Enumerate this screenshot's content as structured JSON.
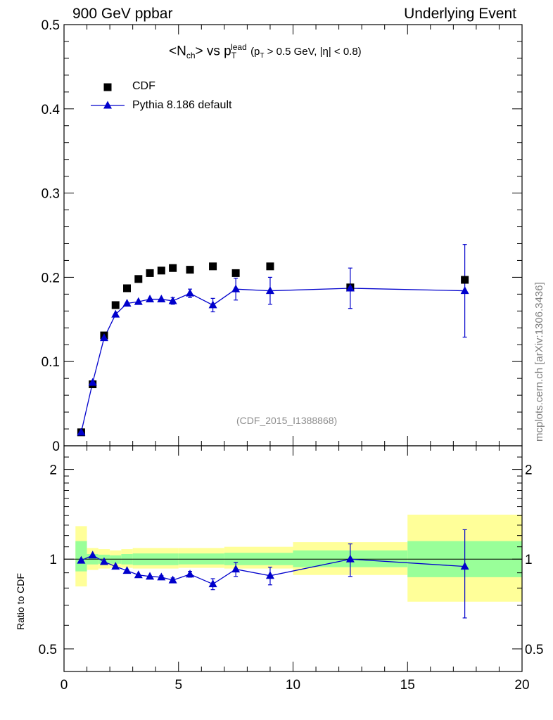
{
  "header": {
    "left": "900 GeV ppbar",
    "right": "Underlying Event"
  },
  "side_label": "mcplots.cern.ch [arXiv:1306.3436]",
  "reference": "(CDF_2015_I1388868)",
  "title": {
    "prefix": "<N",
    "ch_sub": "ch",
    "mid": "> vs p",
    "lead_sup": "lead",
    "t_sub": "T",
    "cuts_open": "(p",
    "cuts_t_sub": "T",
    "cuts_rest": " > 0.5 GeV, |η| < 0.8)"
  },
  "ratio_ylabel": "Ratio to CDF",
  "colors": {
    "data": "#000000",
    "mc": "#0000cc",
    "band_outer": "#ffff99",
    "band_inner": "#99ff99"
  },
  "chart_data": [
    {
      "type": "scatter",
      "panel": "main",
      "xlim": [
        0,
        20
      ],
      "ylim": [
        0,
        0.5
      ],
      "yticks": [
        "0.1",
        "0.2",
        "0.3",
        "0.4",
        "0.5"
      ],
      "ytick_values": [
        0.1,
        0.2,
        0.3,
        0.4,
        0.5
      ],
      "ytick_zero": "0",
      "legend_position": "top-left",
      "series": [
        {
          "name": "CDF",
          "marker": "square",
          "x": [
            0.75,
            1.25,
            1.75,
            2.25,
            2.75,
            3.25,
            3.75,
            4.25,
            4.75,
            5.5,
            6.5,
            7.5,
            9.0,
            12.5,
            17.5
          ],
          "y": [
            0.016,
            0.073,
            0.131,
            0.167,
            0.187,
            0.198,
            0.205,
            0.208,
            0.211,
            0.209,
            0.213,
            0.205,
            0.213,
            0.188,
            0.197
          ]
        },
        {
          "name": "Pythia 8.186 default",
          "marker": "triangle",
          "x": [
            0.75,
            1.25,
            1.75,
            2.25,
            2.75,
            3.25,
            3.75,
            4.25,
            4.75,
            5.5,
            6.5,
            7.5,
            9.0,
            12.5,
            17.5
          ],
          "y": [
            0.016,
            0.075,
            0.128,
            0.156,
            0.169,
            0.171,
            0.174,
            0.174,
            0.172,
            0.181,
            0.167,
            0.186,
            0.184,
            0.187,
            0.184
          ],
          "yerr": [
            0,
            0,
            0,
            0,
            0.002,
            0.002,
            0.003,
            0.003,
            0.004,
            0.005,
            0.008,
            0.013,
            0.016,
            0.024,
            0.055
          ]
        }
      ]
    },
    {
      "type": "line",
      "panel": "ratio",
      "xlim": [
        0,
        20
      ],
      "ylim": [
        0.42,
        2.4
      ],
      "log_y": true,
      "xticks": [
        "0",
        "5",
        "10",
        "15",
        "20"
      ],
      "xtick_values": [
        0,
        5,
        10,
        15,
        20
      ],
      "yticks": [
        "0.5",
        "1",
        "2"
      ],
      "ytick_values": [
        0.5,
        1,
        2
      ],
      "bands": [
        {
          "x0": 0.5,
          "x1": 1.0,
          "outer": [
            0.81,
            1.29
          ],
          "inner": [
            0.91,
            1.15
          ]
        },
        {
          "x0": 1.0,
          "x1": 1.5,
          "outer": [
            0.92,
            1.09
          ],
          "inner": [
            0.96,
            1.04
          ]
        },
        {
          "x0": 1.5,
          "x1": 2.0,
          "outer": [
            0.93,
            1.08
          ],
          "inner": [
            0.965,
            1.035
          ]
        },
        {
          "x0": 2.0,
          "x1": 2.5,
          "outer": [
            0.935,
            1.07
          ],
          "inner": [
            0.965,
            1.03
          ]
        },
        {
          "x0": 2.5,
          "x1": 3.0,
          "outer": [
            0.935,
            1.08
          ],
          "inner": [
            0.96,
            1.04
          ]
        },
        {
          "x0": 3.0,
          "x1": 5.0,
          "outer": [
            0.93,
            1.09
          ],
          "inner": [
            0.955,
            1.045
          ]
        },
        {
          "x0": 5.0,
          "x1": 7.0,
          "outer": [
            0.935,
            1.09
          ],
          "inner": [
            0.96,
            1.045
          ]
        },
        {
          "x0": 7.0,
          "x1": 10.0,
          "outer": [
            0.93,
            1.1
          ],
          "inner": [
            0.955,
            1.05
          ]
        },
        {
          "x0": 10.0,
          "x1": 15.0,
          "outer": [
            0.885,
            1.14
          ],
          "inner": [
            0.94,
            1.07
          ]
        },
        {
          "x0": 15.0,
          "x1": 20.0,
          "outer": [
            0.72,
            1.41
          ],
          "inner": [
            0.87,
            1.15
          ]
        }
      ],
      "series": [
        {
          "name": "Pythia 8.186 default",
          "x": [
            0.75,
            1.25,
            1.75,
            2.25,
            2.75,
            3.25,
            3.75,
            4.25,
            4.75,
            5.5,
            6.5,
            7.5,
            9.0,
            12.5,
            17.5
          ],
          "y": [
            0.99,
            1.03,
            0.98,
            0.945,
            0.915,
            0.885,
            0.875,
            0.87,
            0.85,
            0.89,
            0.825,
            0.925,
            0.88,
            1.0,
            0.945
          ],
          "yerr": [
            0,
            0,
            0,
            0,
            0,
            0,
            0,
            0.01,
            0.015,
            0.02,
            0.035,
            0.05,
            0.06,
            0.125,
            0.31
          ]
        }
      ]
    }
  ]
}
